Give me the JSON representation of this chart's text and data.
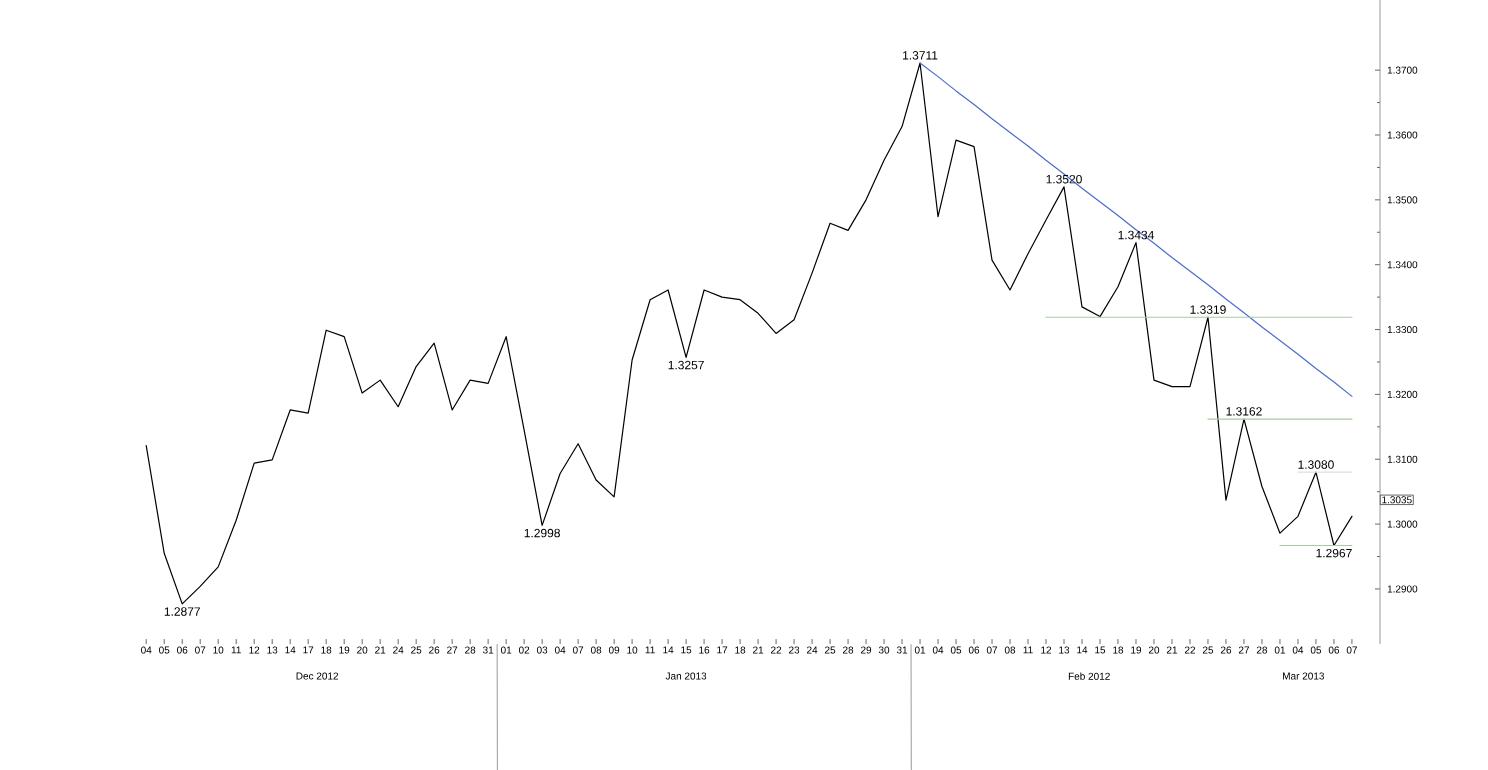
{
  "chart_data": {
    "type": "line",
    "categories": [
      "04",
      "05",
      "06",
      "07",
      "10",
      "11",
      "12",
      "13",
      "14",
      "17",
      "18",
      "19",
      "20",
      "21",
      "24",
      "25",
      "26",
      "27",
      "28",
      "31",
      "01",
      "02",
      "03",
      "04",
      "07",
      "08",
      "09",
      "10",
      "11",
      "14",
      "15",
      "16",
      "17",
      "18",
      "21",
      "22",
      "23",
      "24",
      "25",
      "28",
      "29",
      "30",
      "31",
      "01",
      "04",
      "05",
      "06",
      "07",
      "08",
      "11",
      "12",
      "13",
      "14",
      "15",
      "18",
      "19",
      "20",
      "21",
      "22",
      "25",
      "26",
      "27",
      "28",
      "01",
      "04",
      "05",
      "06",
      "07"
    ],
    "series": [
      {
        "color": "#000000",
        "values": [
          1.3121,
          1.2955,
          1.2877,
          1.2904,
          1.2934,
          1.3006,
          1.3094,
          1.3099,
          1.3176,
          1.3171,
          1.3299,
          1.3289,
          1.3202,
          1.3222,
          1.3181,
          1.3243,
          1.3279,
          1.3176,
          1.3222,
          1.3217,
          1.3289,
          1.3145,
          1.2998,
          1.3078,
          1.3124,
          1.3068,
          1.3042,
          1.3253,
          1.3346,
          1.3361,
          1.3257,
          1.3361,
          1.335,
          1.3346,
          1.3325,
          1.3294,
          1.3315,
          1.3387,
          1.3464,
          1.3453,
          1.35,
          1.3561,
          1.3613,
          1.3711,
          1.3474,
          1.3592,
          1.3582,
          1.3407,
          1.3361,
          1.3417,
          1.3469,
          1.352,
          1.3335,
          1.332,
          1.3366,
          1.3434,
          1.3222,
          1.3212,
          1.3212,
          1.3319,
          1.3037,
          1.3162,
          1.3058,
          1.2986,
          1.3012,
          1.308,
          1.2967,
          1.3012
        ]
      },
      {
        "type": "line",
        "color": "#4a6ccc",
        "values": [
          null,
          null,
          null,
          null,
          null,
          null,
          null,
          null,
          null,
          null,
          null,
          null,
          null,
          null,
          null,
          null,
          null,
          null,
          null,
          null,
          null,
          null,
          null,
          null,
          null,
          null,
          null,
          null,
          null,
          null,
          null,
          null,
          null,
          null,
          null,
          null,
          null,
          null,
          null,
          null,
          null,
          null,
          null,
          1.3711,
          1.369,
          1.3668,
          1.3647,
          1.3625,
          1.3604,
          1.3583,
          1.3561,
          1.354,
          1.3518,
          1.3497,
          1.3476,
          1.3454,
          1.3433,
          1.3411,
          1.339,
          1.3369,
          1.3347,
          1.3326,
          1.3304,
          1.3283,
          1.3262,
          1.324,
          1.3219,
          1.3197
        ]
      },
      {
        "type": "line",
        "color": "#a9c9a4",
        "values": [
          null,
          null,
          null,
          null,
          null,
          null,
          null,
          null,
          null,
          null,
          null,
          null,
          null,
          null,
          null,
          null,
          null,
          null,
          null,
          null,
          null,
          null,
          null,
          null,
          null,
          null,
          null,
          null,
          null,
          null,
          null,
          null,
          null,
          null,
          null,
          null,
          null,
          null,
          null,
          null,
          null,
          null,
          null,
          null,
          null,
          null,
          null,
          null,
          null,
          null,
          1.3319,
          1.3319,
          1.3319,
          1.3319,
          1.3319,
          1.3319,
          1.3319,
          1.3319,
          1.3319,
          1.3319,
          1.3319,
          1.3319,
          1.3319,
          1.3319,
          1.3319,
          1.3319,
          1.3319,
          1.3319
        ]
      },
      {
        "type": "line",
        "color": "#a9c9a4",
        "values": [
          null,
          null,
          null,
          null,
          null,
          null,
          null,
          null,
          null,
          null,
          null,
          null,
          null,
          null,
          null,
          null,
          null,
          null,
          null,
          null,
          null,
          null,
          null,
          null,
          null,
          null,
          null,
          null,
          null,
          null,
          null,
          null,
          null,
          null,
          null,
          null,
          null,
          null,
          null,
          null,
          null,
          null,
          null,
          null,
          null,
          null,
          null,
          null,
          null,
          null,
          null,
          null,
          null,
          null,
          null,
          null,
          null,
          null,
          null,
          1.3162,
          1.3162,
          1.3162,
          1.3162,
          1.3162,
          1.3162,
          1.3162,
          1.3162,
          1.3162
        ]
      },
      {
        "type": "line",
        "color": "#d8e4d8",
        "values": [
          null,
          null,
          null,
          null,
          null,
          null,
          null,
          null,
          null,
          null,
          null,
          null,
          null,
          null,
          null,
          null,
          null,
          null,
          null,
          null,
          null,
          null,
          null,
          null,
          null,
          null,
          null,
          null,
          null,
          null,
          null,
          null,
          null,
          null,
          null,
          null,
          null,
          null,
          null,
          null,
          null,
          null,
          null,
          null,
          null,
          null,
          null,
          null,
          null,
          null,
          null,
          null,
          null,
          null,
          null,
          null,
          null,
          null,
          null,
          null,
          null,
          null,
          null,
          null,
          1.308,
          1.308,
          1.308,
          1.308
        ]
      },
      {
        "type": "line",
        "color": "#a9c9a4",
        "values": [
          null,
          null,
          null,
          null,
          null,
          null,
          null,
          null,
          null,
          null,
          null,
          null,
          null,
          null,
          null,
          null,
          null,
          null,
          null,
          null,
          null,
          null,
          null,
          null,
          null,
          null,
          null,
          null,
          null,
          null,
          null,
          null,
          null,
          null,
          null,
          null,
          null,
          null,
          null,
          null,
          null,
          null,
          null,
          null,
          null,
          null,
          null,
          null,
          null,
          null,
          null,
          null,
          null,
          null,
          null,
          null,
          null,
          null,
          null,
          null,
          null,
          null,
          null,
          1.2967,
          1.2967,
          1.2967,
          1.2967,
          1.2967
        ]
      }
    ],
    "ylim": [
      1.2815,
      1.3808
    ],
    "yticks": [
      {
        "value": 1.29,
        "label": "1.2900"
      },
      {
        "value": 1.3,
        "label": "1.3000"
      },
      {
        "value": 1.31,
        "label": "1.3100"
      },
      {
        "value": 1.32,
        "label": "1.3200"
      },
      {
        "value": 1.33,
        "label": "1.3300"
      },
      {
        "value": 1.34,
        "label": "1.3400"
      },
      {
        "value": 1.35,
        "label": "1.3500"
      },
      {
        "value": 1.36,
        "label": "1.3600"
      },
      {
        "value": 1.37,
        "label": "1.3700"
      }
    ],
    "annotations": [
      "1.2877",
      "1.2998",
      "1.3257",
      "1.3711",
      "1.3520",
      "1.3434",
      "1.3319",
      "1.3162",
      "1.3080",
      "1.2967",
      "Dec 2012",
      "Jan 2013",
      "Feb 2012",
      "Mar 2013",
      "1.3035"
    ]
  }
}
